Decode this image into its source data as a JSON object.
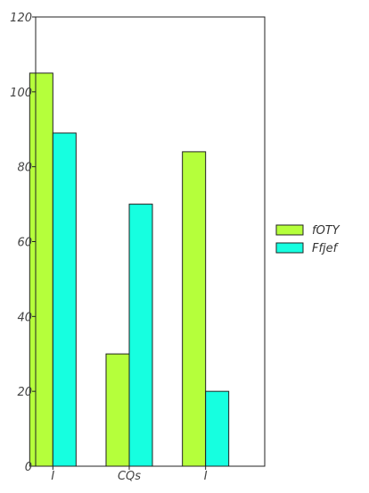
{
  "chart_data": {
    "type": "bar",
    "categories": [
      "I",
      "CQs",
      "I"
    ],
    "series": [
      {
        "name": "fOTY",
        "values": [
          105,
          30,
          84
        ],
        "color": "#b5ff3b"
      },
      {
        "name": "Ffjef",
        "values": [
          89,
          70,
          20
        ],
        "color": "#16ffe0"
      }
    ],
    "title": "",
    "xlabel": "",
    "ylabel": "",
    "ylim": [
      0,
      120
    ],
    "yticks": [
      0,
      20,
      40,
      60,
      80,
      100,
      120
    ],
    "grid": false,
    "legend": "right"
  }
}
